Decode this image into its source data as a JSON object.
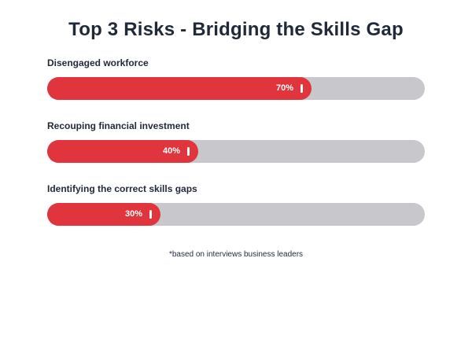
{
  "title": "Top 3 Risks - Bridging the Skills Gap",
  "footnote": "*based on interviews business leaders",
  "colors": {
    "fill": "#e0353c",
    "track": "#c8c7cc",
    "text": "#1f2937"
  },
  "chart_data": {
    "type": "bar",
    "orientation": "horizontal",
    "title": "Top 3 Risks - Bridging the Skills Gap",
    "categories": [
      "Disengaged workforce",
      "Recouping financial investment",
      "Identifying the correct skills gaps"
    ],
    "values": [
      70,
      40,
      30
    ],
    "value_labels": [
      "70%",
      "40%",
      "30%"
    ],
    "xlim": [
      0,
      100
    ],
    "grid": false,
    "legend": "none"
  }
}
